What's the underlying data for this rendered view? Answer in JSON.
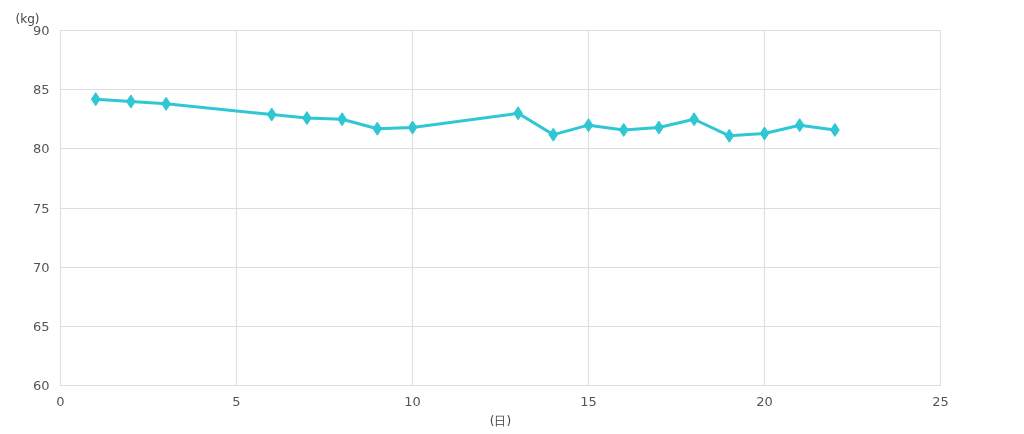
{
  "chart_data": {
    "type": "line",
    "ylabel": "(kg)",
    "xlabel": "(日)",
    "x": [
      1,
      2,
      3,
      6,
      7,
      8,
      9,
      10,
      13,
      14,
      15,
      16,
      17,
      18,
      19,
      20,
      21,
      22
    ],
    "series": [
      {
        "color": "#2ec7d3",
        "values": [
          84.2,
          84.0,
          83.8,
          82.9,
          82.6,
          82.5,
          81.7,
          81.8,
          83.0,
          81.2,
          82.0,
          81.6,
          81.8,
          82.5,
          81.1,
          81.3,
          82.0,
          81.6
        ]
      }
    ],
    "xlim": [
      0,
      25
    ],
    "xticks": [
      0,
      5,
      10,
      15,
      20,
      25
    ],
    "ylim": [
      60,
      90
    ],
    "yticks": [
      60,
      65,
      70,
      75,
      80,
      85,
      90
    ],
    "grid": true,
    "marker": "diamond",
    "line_style": "solid"
  }
}
